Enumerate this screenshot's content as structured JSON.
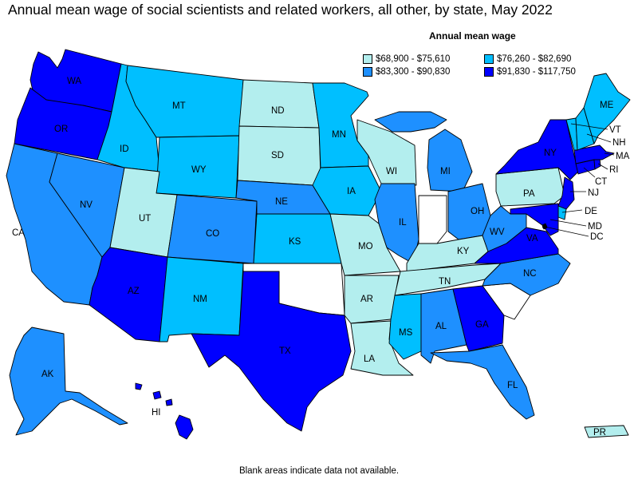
{
  "title": "Annual mean wage of social scientists and related workers, all other, by state, May 2022",
  "legend": {
    "title": "Annual mean wage",
    "bins": [
      {
        "label": "$68,900 - $75,610",
        "color": "#b3eeee"
      },
      {
        "label": "$76,260 - $82,690",
        "color": "#00bfff"
      },
      {
        "label": "$83,300 - $90,830",
        "color": "#1e90ff"
      },
      {
        "label": "$91,830 - $117,750",
        "color": "#0000ff"
      }
    ]
  },
  "footnote": "Blank areas indicate data not available.",
  "states": {
    "WA": 3,
    "OR": 3,
    "CA": 2,
    "NV": 2,
    "ID": 1,
    "MT": 1,
    "WY": 1,
    "UT": 0,
    "AZ": 3,
    "CO": 2,
    "NM": 1,
    "ND": 0,
    "SD": 0,
    "NE": 2,
    "KS": 1,
    "OK": null,
    "TX": 3,
    "MN": 1,
    "IA": 1,
    "MO": 0,
    "AR": 0,
    "LA": 0,
    "WI": 0,
    "IL": 2,
    "MI": 2,
    "IN": null,
    "OH": 2,
    "KY": 0,
    "TN": 0,
    "MS": 1,
    "AL": 2,
    "GA": 3,
    "FL": 2,
    "SC": null,
    "NC": 2,
    "VA": 3,
    "WV": 2,
    "PA": 0,
    "NY": 3,
    "VT": 1,
    "NH": 1,
    "ME": 1,
    "MA": 3,
    "RI": 3,
    "CT": 3,
    "NJ": 3,
    "DE": 1,
    "MD": 3,
    "DC": 3,
    "AK": 2,
    "HI": 3,
    "PR": 0
  },
  "labels": {
    "WA": "WA",
    "OR": "OR",
    "CA": "CA",
    "NV": "NV",
    "ID": "ID",
    "MT": "MT",
    "WY": "WY",
    "UT": "UT",
    "AZ": "AZ",
    "CO": "CO",
    "NM": "NM",
    "ND": "ND",
    "SD": "SD",
    "NE": "NE",
    "KS": "KS",
    "TX": "TX",
    "MN": "MN",
    "IA": "IA",
    "MO": "MO",
    "AR": "AR",
    "LA": "LA",
    "WI": "WI",
    "IL": "IL",
    "MI": "MI",
    "OH": "OH",
    "KY": "KY",
    "TN": "TN",
    "MS": "MS",
    "AL": "AL",
    "GA": "GA",
    "FL": "FL",
    "NC": "NC",
    "VA": "VA",
    "WV": "WV",
    "PA": "PA",
    "NY": "NY",
    "VT": "VT",
    "NH": "NH",
    "ME": "ME",
    "MA": "MA",
    "RI": "RI",
    "CT": "CT",
    "NJ": "NJ",
    "DE": "DE",
    "MD": "MD",
    "DC": "DC",
    "AK": "AK",
    "HI": "HI",
    "PR": "PR"
  }
}
